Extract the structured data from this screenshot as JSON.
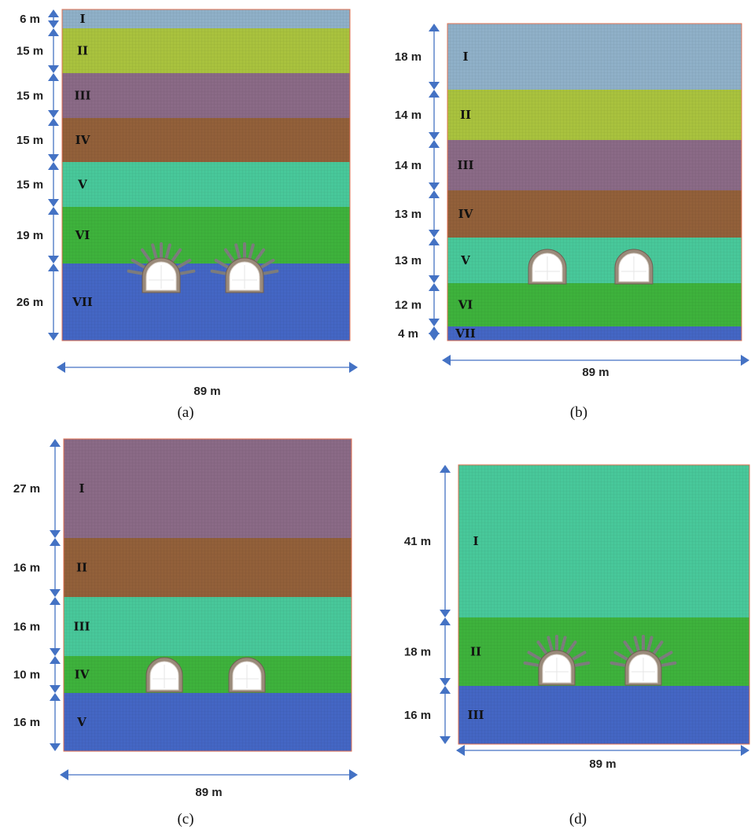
{
  "panels": [
    {
      "caption": "(a)",
      "width_label": "89 m",
      "layers": [
        {
          "roman": "I",
          "thickness": "6 m",
          "color": "#8fb0c8"
        },
        {
          "roman": "II",
          "thickness": "15 m",
          "color": "#a9c23e"
        },
        {
          "roman": "III",
          "thickness": "15 m",
          "color": "#8a6a86"
        },
        {
          "roman": "IV",
          "thickness": "15 m",
          "color": "#92603a"
        },
        {
          "roman": "V",
          "thickness": "15 m",
          "color": "#48c89a"
        },
        {
          "roman": "VI",
          "thickness": "19 m",
          "color": "#3eb23c"
        },
        {
          "roman": "VII",
          "thickness": "26 m",
          "color": "#4466c4"
        }
      ],
      "tunnel_bolts": true
    },
    {
      "caption": "(b)",
      "width_label": "89 m",
      "layers": [
        {
          "roman": "I",
          "thickness": "18 m",
          "color": "#8fb0c8"
        },
        {
          "roman": "II",
          "thickness": "14 m",
          "color": "#a9c23e"
        },
        {
          "roman": "III",
          "thickness": "14 m",
          "color": "#8a6a86"
        },
        {
          "roman": "IV",
          "thickness": "13 m",
          "color": "#92603a"
        },
        {
          "roman": "V",
          "thickness": "13 m",
          "color": "#48c89a"
        },
        {
          "roman": "VI",
          "thickness": "12 m",
          "color": "#3eb23c"
        },
        {
          "roman": "VII",
          "thickness": "4 m",
          "color": "#4466c4"
        }
      ],
      "tunnel_bolts": false
    },
    {
      "caption": "(c)",
      "width_label": "89 m",
      "layers": [
        {
          "roman": "I",
          "thickness": "27 m",
          "color": "#8a6a86"
        },
        {
          "roman": "II",
          "thickness": "16 m",
          "color": "#92603a"
        },
        {
          "roman": "III",
          "thickness": "16 m",
          "color": "#48c89a"
        },
        {
          "roman": "IV",
          "thickness": "10 m",
          "color": "#3eb23c"
        },
        {
          "roman": "V",
          "thickness": "16 m",
          "color": "#4466c4"
        }
      ],
      "tunnel_bolts": false
    },
    {
      "caption": "(d)",
      "width_label": "89 m",
      "layers": [
        {
          "roman": "I",
          "thickness": "41 m",
          "color": "#48c89a"
        },
        {
          "roman": "II",
          "thickness": "18 m",
          "color": "#3eb23c"
        },
        {
          "roman": "III",
          "thickness": "16 m",
          "color": "#4466c4"
        }
      ],
      "tunnel_bolts": true
    }
  ],
  "colors": {
    "dimension_arrow": "#4472c4",
    "tunnel_lining": "#9a8a7a",
    "tunnel_inner": "#ffffff"
  }
}
